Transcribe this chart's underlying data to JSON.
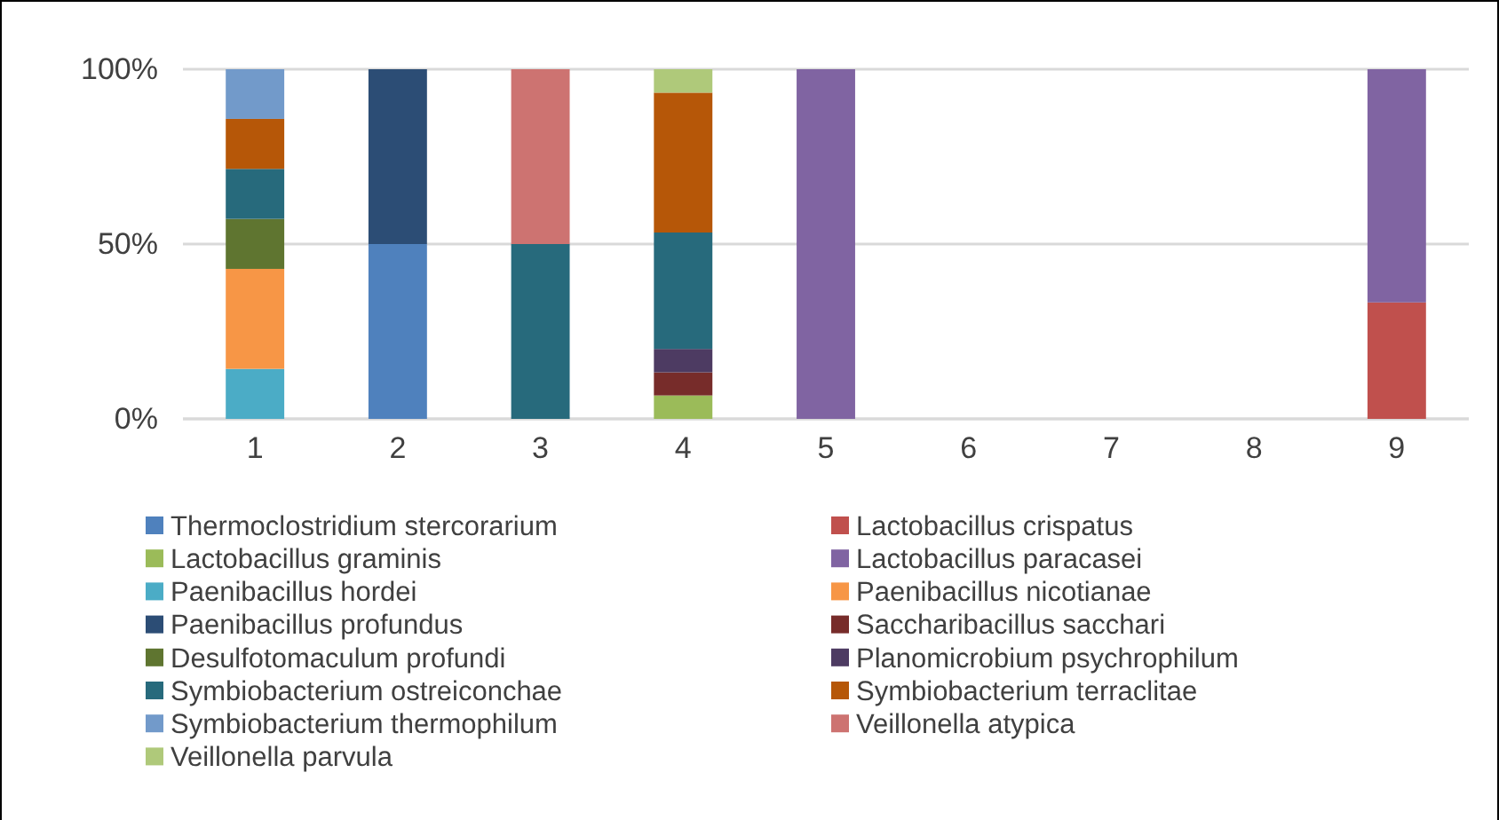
{
  "chart_data": {
    "type": "bar",
    "stacked": true,
    "categories": [
      "1",
      "2",
      "3",
      "4",
      "5",
      "6",
      "7",
      "8",
      "9"
    ],
    "ylim": [
      0,
      100
    ],
    "yticks": [
      {
        "value": 0,
        "label": "0%"
      },
      {
        "value": 50,
        "label": "50%"
      },
      {
        "value": 100,
        "label": "100%"
      }
    ],
    "grid": "y",
    "legend": "bottom",
    "series": [
      {
        "name": "Thermoclostridium stercorarium",
        "color": "#4f81bd",
        "values": [
          0,
          50,
          0,
          0,
          0,
          0,
          0,
          0,
          0
        ]
      },
      {
        "name": "Lactobacillus crispatus",
        "color": "#c0504d",
        "values": [
          0,
          0,
          0,
          0,
          0,
          0,
          0,
          0,
          33.3
        ]
      },
      {
        "name": "Lactobacillus graminis",
        "color": "#9bbb59",
        "values": [
          0,
          0,
          0,
          6.7,
          0,
          0,
          0,
          0,
          0
        ]
      },
      {
        "name": "Lactobacillus paracasei",
        "color": "#8064a2",
        "values": [
          0,
          0,
          0,
          0,
          100,
          0,
          0,
          0,
          66.7
        ]
      },
      {
        "name": "Paenibacillus hordei",
        "color": "#4bacc6",
        "values": [
          14.3,
          0,
          0,
          0,
          0,
          0,
          0,
          0,
          0
        ]
      },
      {
        "name": "Paenibacillus nicotianae",
        "color": "#f79646",
        "values": [
          28.6,
          0,
          0,
          0,
          0,
          0,
          0,
          0,
          0
        ]
      },
      {
        "name": "Paenibacillus profundus",
        "color": "#2c4d75",
        "values": [
          0,
          50,
          0,
          0,
          0,
          0,
          0,
          0,
          0
        ]
      },
      {
        "name": "Saccharibacillus sacchari",
        "color": "#772c2a",
        "values": [
          0,
          0,
          0,
          6.6,
          0,
          0,
          0,
          0,
          0
        ]
      },
      {
        "name": "Desulfotomaculum profundi",
        "color": "#5f7530",
        "values": [
          14.3,
          0,
          0,
          0,
          0,
          0,
          0,
          0,
          0
        ]
      },
      {
        "name": "Planomicrobium psychrophilum",
        "color": "#4d3b62",
        "values": [
          0,
          0,
          0,
          6.7,
          0,
          0,
          0,
          0,
          0
        ]
      },
      {
        "name": "Symbiobacterium ostreiconchae",
        "color": "#276a7c",
        "values": [
          14.3,
          0,
          50,
          33.3,
          0,
          0,
          0,
          0,
          0
        ]
      },
      {
        "name": "Symbiobacterium terraclitae",
        "color": "#b65708",
        "values": [
          14.3,
          0,
          0,
          40,
          0,
          0,
          0,
          0,
          0
        ]
      },
      {
        "name": "Symbiobacterium thermophilum",
        "color": "#729aca",
        "values": [
          14.2,
          0,
          0,
          0,
          0,
          0,
          0,
          0,
          0
        ]
      },
      {
        "name": "Veillonella atypica",
        "color": "#cd7371",
        "values": [
          0,
          0,
          50,
          0,
          0,
          0,
          0,
          0,
          0
        ]
      },
      {
        "name": "Veillonella parvula",
        "color": "#afc97a",
        "values": [
          0,
          0,
          0,
          6.7,
          0,
          0,
          0,
          0,
          0
        ]
      }
    ]
  }
}
